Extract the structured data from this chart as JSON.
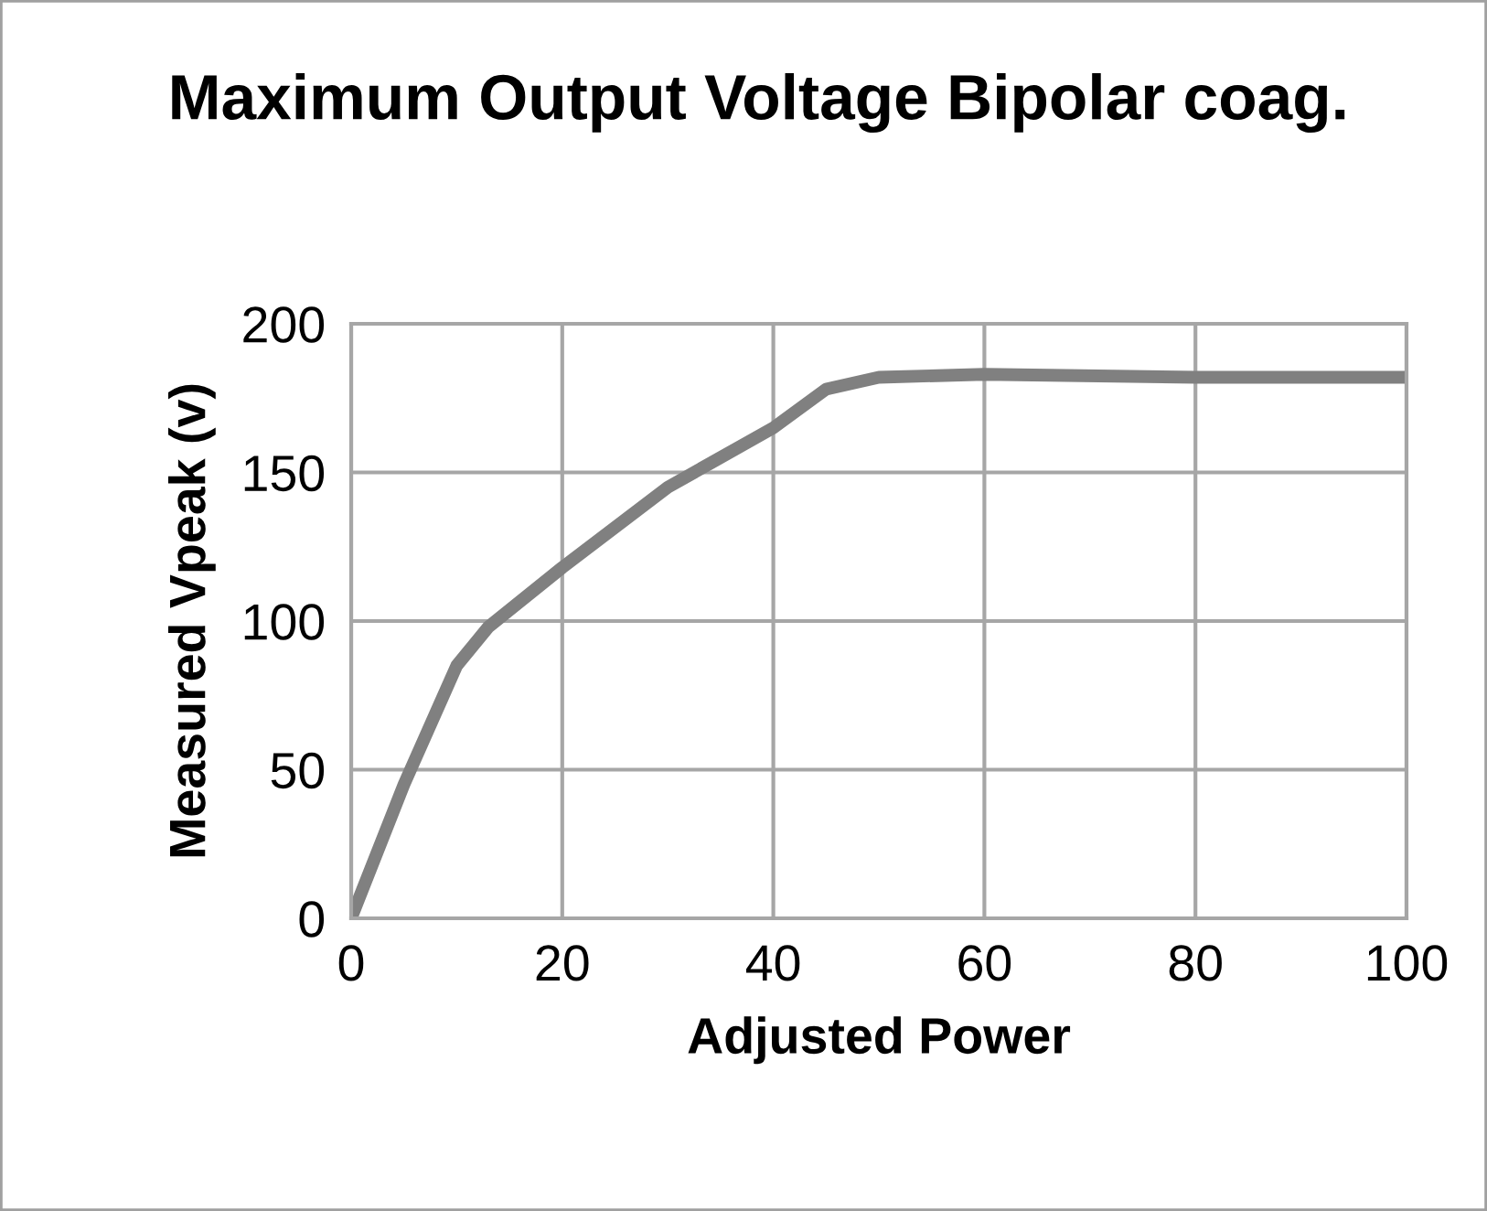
{
  "chart_data": {
    "type": "line",
    "title": "Maximum Output Voltage Bipolar coag.",
    "xlabel": "Adjusted Power",
    "ylabel": "Measured Vpeak (v)",
    "x": [
      0,
      5,
      10,
      13,
      20,
      30,
      40,
      45,
      50,
      60,
      80,
      100
    ],
    "series": [
      {
        "color": "#808080",
        "values": [
          0,
          45,
          85,
          98,
          118,
          145,
          165,
          178,
          182,
          183,
          182,
          182
        ]
      }
    ],
    "xlim": [
      0,
      100
    ],
    "xticks": [
      0,
      20,
      40,
      60,
      80,
      100
    ],
    "ylim": [
      0,
      200
    ],
    "yticks": [
      0,
      50,
      100,
      150,
      200
    ],
    "grid": true,
    "legend": false,
    "marker": "none",
    "line_style": "solid"
  }
}
